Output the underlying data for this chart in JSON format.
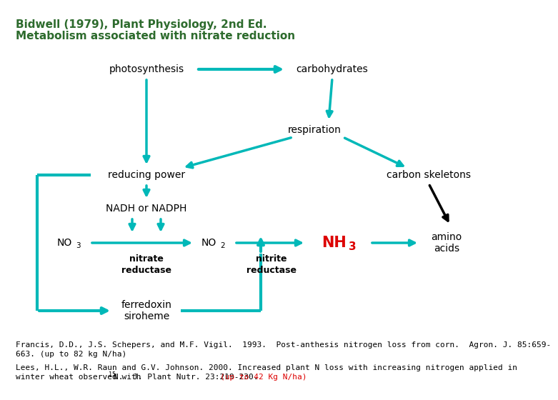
{
  "title_line1": "Bidwell (1979), Plant Physiology, 2nd Ed.",
  "title_line2": "Metabolism associated with nitrate reduction",
  "title_color": "#2d6b2d",
  "bg_color": "#ffffff",
  "teal": "#00b8b8",
  "black": "#000000",
  "red": "#dd0000",
  "footnote1_line1": "Francis, D.D., J.S. Schepers, and M.F. Vigil.  1993.  Post-anthesis nitrogen loss from corn.  Agron. J. 85:659-",
  "footnote1_line2": "663. (up to 82 kg N/ha)",
  "footnote2_line1": "Lees, H.L., W.R. Raun and G.V. Johnson. 2000. Increased plant N loss with increasing nitrogen applied in",
  "footnote2_line2a": "winter wheat observed with ",
  "footnote2_line2b": "15",
  "footnote2_line2c": "N.  J. Plant Nutr. 23:219-230. ",
  "footnote2_line2d": "(up to 42 Kg N/ha)",
  "fn_fs": 8.0
}
